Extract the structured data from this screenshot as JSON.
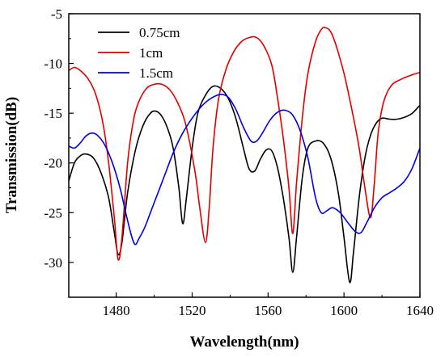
{
  "chart_data": {
    "type": "line",
    "xlabel": "Wavelength(nm)",
    "ylabel": "Transmission(dB)",
    "xlim": [
      1455,
      1640
    ],
    "ylim": [
      -33.5,
      -5
    ],
    "xticks": [
      1480,
      1520,
      1560,
      1600,
      1640
    ],
    "yticks": [
      -30,
      -25,
      -20,
      -15,
      -10,
      -5
    ],
    "grid": false,
    "legend_position": "top-left",
    "series": [
      {
        "name": "0.75cm",
        "color": "#000000",
        "points": [
          [
            1455,
            -21.8
          ],
          [
            1458,
            -20.0
          ],
          [
            1461,
            -19.3
          ],
          [
            1464,
            -19.1
          ],
          [
            1468,
            -19.5
          ],
          [
            1472,
            -21.0
          ],
          [
            1476,
            -23.5
          ],
          [
            1479,
            -27.0
          ],
          [
            1481,
            -29.2
          ],
          [
            1483,
            -28.0
          ],
          [
            1486,
            -23.0
          ],
          [
            1490,
            -18.8
          ],
          [
            1494,
            -16.3
          ],
          [
            1498,
            -15.0
          ],
          [
            1501,
            -14.8
          ],
          [
            1504,
            -15.3
          ],
          [
            1507,
            -16.5
          ],
          [
            1510,
            -18.5
          ],
          [
            1513,
            -22.5
          ],
          [
            1515,
            -26.1
          ],
          [
            1517,
            -23.5
          ],
          [
            1520,
            -18.5
          ],
          [
            1523,
            -15.0
          ],
          [
            1527,
            -13.2
          ],
          [
            1531,
            -12.3
          ],
          [
            1535,
            -12.5
          ],
          [
            1539,
            -13.5
          ],
          [
            1543,
            -15.5
          ],
          [
            1547,
            -18.5
          ],
          [
            1550,
            -20.6
          ],
          [
            1553,
            -20.8
          ],
          [
            1556,
            -19.6
          ],
          [
            1559,
            -18.7
          ],
          [
            1562,
            -18.8
          ],
          [
            1565,
            -20.5
          ],
          [
            1568,
            -23.5
          ],
          [
            1571,
            -27.5
          ],
          [
            1573,
            -31.0
          ],
          [
            1575,
            -27.5
          ],
          [
            1578,
            -21.5
          ],
          [
            1581,
            -18.5
          ],
          [
            1585,
            -17.8
          ],
          [
            1589,
            -18.0
          ],
          [
            1593,
            -19.5
          ],
          [
            1597,
            -23.0
          ],
          [
            1600,
            -27.5
          ],
          [
            1603,
            -32.0
          ],
          [
            1605,
            -29.0
          ],
          [
            1608,
            -23.5
          ],
          [
            1611,
            -19.5
          ],
          [
            1614,
            -17.2
          ],
          [
            1617,
            -16.0
          ],
          [
            1620,
            -15.5
          ],
          [
            1624,
            -15.6
          ],
          [
            1628,
            -15.6
          ],
          [
            1632,
            -15.4
          ],
          [
            1636,
            -15.0
          ],
          [
            1640,
            -14.2
          ]
        ]
      },
      {
        "name": "1cm",
        "color": "#e00000",
        "points": [
          [
            1455,
            -10.7
          ],
          [
            1458,
            -10.4
          ],
          [
            1461,
            -10.7
          ],
          [
            1465,
            -11.5
          ],
          [
            1469,
            -13.0
          ],
          [
            1473,
            -16.0
          ],
          [
            1476,
            -20.0
          ],
          [
            1479,
            -25.5
          ],
          [
            1481,
            -29.7
          ],
          [
            1483,
            -27.5
          ],
          [
            1486,
            -20.0
          ],
          [
            1489,
            -15.8
          ],
          [
            1492,
            -13.8
          ],
          [
            1496,
            -12.5
          ],
          [
            1500,
            -12.1
          ],
          [
            1504,
            -12.1
          ],
          [
            1508,
            -12.6
          ],
          [
            1512,
            -13.8
          ],
          [
            1516,
            -15.7
          ],
          [
            1519,
            -18.2
          ],
          [
            1522,
            -21.5
          ],
          [
            1524,
            -24.5
          ],
          [
            1527,
            -28.0
          ],
          [
            1529,
            -24.5
          ],
          [
            1531,
            -18.5
          ],
          [
            1534,
            -13.5
          ],
          [
            1538,
            -10.5
          ],
          [
            1542,
            -8.8
          ],
          [
            1546,
            -7.8
          ],
          [
            1550,
            -7.4
          ],
          [
            1554,
            -7.4
          ],
          [
            1558,
            -8.3
          ],
          [
            1562,
            -10.2
          ],
          [
            1565,
            -13.5
          ],
          [
            1568,
            -17.5
          ],
          [
            1571,
            -22.5
          ],
          [
            1573,
            -27.1
          ],
          [
            1575,
            -22.0
          ],
          [
            1578,
            -15.5
          ],
          [
            1581,
            -11.0
          ],
          [
            1585,
            -7.8
          ],
          [
            1588,
            -6.6
          ],
          [
            1590,
            -6.4
          ],
          [
            1593,
            -6.8
          ],
          [
            1596,
            -8.3
          ],
          [
            1600,
            -11.0
          ],
          [
            1604,
            -14.5
          ],
          [
            1608,
            -18.5
          ],
          [
            1611,
            -22.5
          ],
          [
            1614,
            -25.5
          ],
          [
            1616,
            -22.0
          ],
          [
            1618,
            -17.0
          ],
          [
            1621,
            -13.8
          ],
          [
            1625,
            -12.2
          ],
          [
            1630,
            -11.6
          ],
          [
            1635,
            -11.2
          ],
          [
            1640,
            -10.9
          ]
        ]
      },
      {
        "name": "1.5cm",
        "color": "#0000e0",
        "points": [
          [
            1455,
            -18.3
          ],
          [
            1458,
            -18.5
          ],
          [
            1461,
            -18.0
          ],
          [
            1464,
            -17.3
          ],
          [
            1467,
            -17.0
          ],
          [
            1470,
            -17.2
          ],
          [
            1474,
            -18.2
          ],
          [
            1478,
            -20.0
          ],
          [
            1482,
            -22.5
          ],
          [
            1485,
            -25.0
          ],
          [
            1488,
            -27.3
          ],
          [
            1490,
            -28.2
          ],
          [
            1492,
            -27.6
          ],
          [
            1495,
            -26.5
          ],
          [
            1498,
            -25.0
          ],
          [
            1502,
            -23.0
          ],
          [
            1506,
            -21.0
          ],
          [
            1510,
            -19.0
          ],
          [
            1515,
            -17.0
          ],
          [
            1520,
            -15.5
          ],
          [
            1525,
            -14.3
          ],
          [
            1530,
            -13.5
          ],
          [
            1535,
            -13.1
          ],
          [
            1539,
            -13.4
          ],
          [
            1543,
            -14.6
          ],
          [
            1547,
            -16.4
          ],
          [
            1551,
            -17.8
          ],
          [
            1554,
            -17.8
          ],
          [
            1557,
            -17.0
          ],
          [
            1561,
            -15.7
          ],
          [
            1565,
            -14.9
          ],
          [
            1569,
            -14.7
          ],
          [
            1573,
            -15.2
          ],
          [
            1577,
            -16.8
          ],
          [
            1581,
            -19.5
          ],
          [
            1585,
            -23.5
          ],
          [
            1588,
            -25.0
          ],
          [
            1591,
            -24.8
          ],
          [
            1594,
            -24.5
          ],
          [
            1598,
            -25.0
          ],
          [
            1602,
            -26.0
          ],
          [
            1606,
            -26.9
          ],
          [
            1609,
            -27.0
          ],
          [
            1612,
            -26.0
          ],
          [
            1616,
            -24.5
          ],
          [
            1620,
            -23.5
          ],
          [
            1624,
            -23.0
          ],
          [
            1628,
            -22.5
          ],
          [
            1632,
            -21.8
          ],
          [
            1636,
            -20.5
          ],
          [
            1640,
            -18.5
          ]
        ]
      }
    ]
  }
}
